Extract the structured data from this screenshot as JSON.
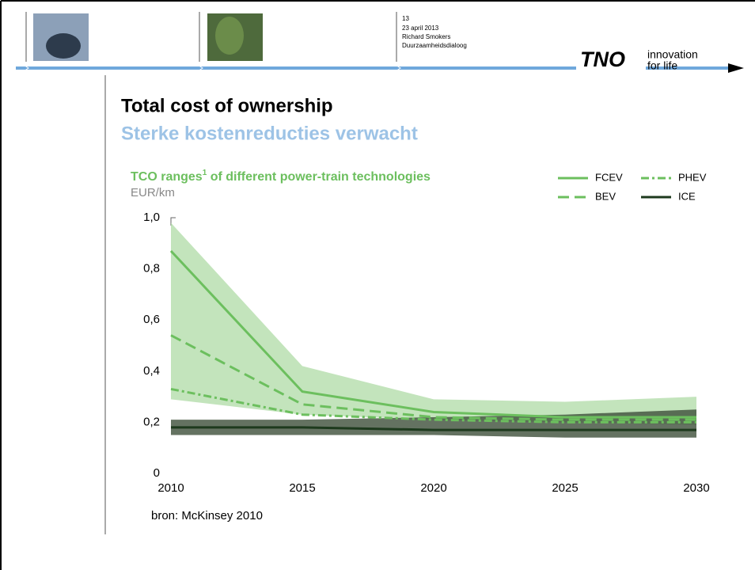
{
  "header": {
    "page": "13",
    "date": "23 april 2013",
    "author": "Richard Smokers",
    "event": "Duurzaamheidsdialoog",
    "logo": "TNO",
    "tagline1": "innovation",
    "tagline2": "for life"
  },
  "slide": {
    "title": "Total cost of ownership",
    "subtitle": "Sterke kostenreducties verwacht",
    "source": "bron: McKinsey 2010"
  },
  "chart_data": {
    "type": "line",
    "title": [
      "TCO ranges",
      "1",
      " of different power-train technologies"
    ],
    "y_label": "EUR/km",
    "x": [
      2010,
      2015,
      2020,
      2025,
      2030
    ],
    "xlim": [
      2010,
      2030
    ],
    "xticks": [
      2010,
      2015,
      2020,
      2025,
      2030
    ],
    "ylim": [
      0,
      1.0
    ],
    "yticks": [
      0,
      {
        "value": 0.2,
        "label": "0,2"
      },
      {
        "value": 0.4,
        "label": "0,4"
      },
      {
        "value": 0.6,
        "label": "0,6"
      },
      {
        "value": 0.8,
        "label": "0,8"
      },
      {
        "value": 1.0,
        "label": "1,0"
      }
    ],
    "legend": "top-right",
    "bands": [
      {
        "color": "#a9d9a0",
        "high": [
          0.98,
          0.42,
          0.29,
          0.28,
          0.3
        ],
        "low": [
          0.29,
          0.23,
          0.21,
          0.2,
          0.19
        ]
      },
      {
        "color": "#3d4f3a",
        "high": [
          0.21,
          0.21,
          0.22,
          0.23,
          0.25
        ],
        "low": [
          0.15,
          0.15,
          0.15,
          0.14,
          0.14
        ]
      }
    ],
    "series": [
      {
        "name": "FCEV",
        "color": "#6cbf5e",
        "dash": "solid",
        "values": [
          0.87,
          0.32,
          0.24,
          0.22,
          0.22
        ]
      },
      {
        "name": "BEV",
        "color": "#6cbf5e",
        "dash": "dashed",
        "values": [
          0.54,
          0.27,
          0.22,
          0.21,
          0.21
        ]
      },
      {
        "name": "PHEV",
        "color": "#6cbf5e",
        "dash": "dashdot",
        "values": [
          0.33,
          0.23,
          0.21,
          0.2,
          0.2
        ]
      },
      {
        "name": "ICE",
        "color": "#1d3a1d",
        "dash": "solid",
        "values": [
          0.18,
          0.18,
          0.17,
          0.17,
          0.17
        ]
      }
    ]
  }
}
